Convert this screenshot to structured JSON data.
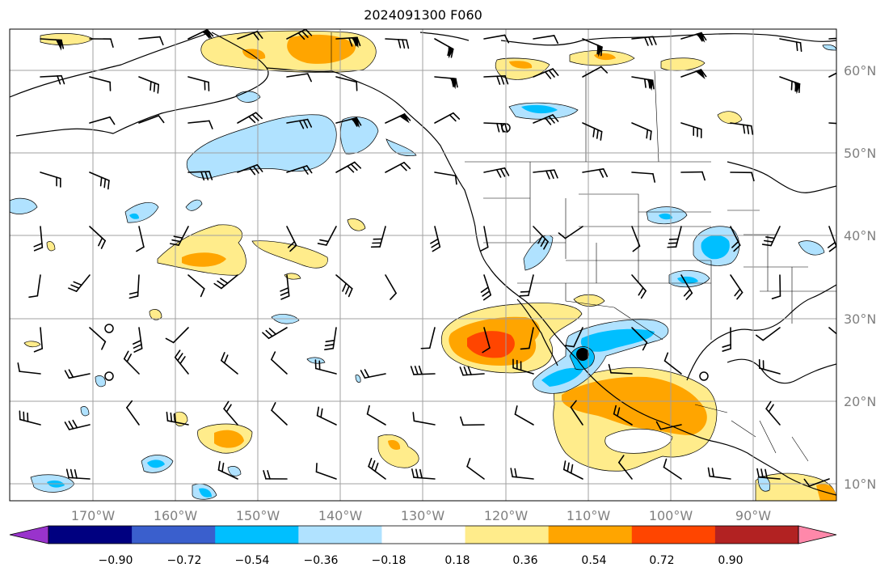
{
  "title": "2024091300 F060",
  "map": {
    "lon_labels": [
      "170°W",
      "160°W",
      "150°W",
      "140°W",
      "130°W",
      "120°W",
      "110°W",
      "100°W",
      "90°W"
    ],
    "lat_labels": [
      "60°N",
      "50°N",
      "40°N",
      "30°N",
      "20°N",
      "10°N"
    ],
    "grid_color": "#a0a0a0",
    "label_color": "#808080"
  },
  "colorbar": {
    "colors": [
      "#9933cc",
      "#000080",
      "#3a5fcd",
      "#00bfff",
      "#b0e2ff",
      "#ffffff",
      "#ffec8b",
      "#ffa500",
      "#ff4500",
      "#b22222",
      "#ff88aa"
    ],
    "ticks": [
      "−0.90",
      "−0.72",
      "−0.54",
      "−0.36",
      "−0.18",
      "0.18",
      "0.36",
      "0.54",
      "0.72",
      "0.90"
    ]
  }
}
